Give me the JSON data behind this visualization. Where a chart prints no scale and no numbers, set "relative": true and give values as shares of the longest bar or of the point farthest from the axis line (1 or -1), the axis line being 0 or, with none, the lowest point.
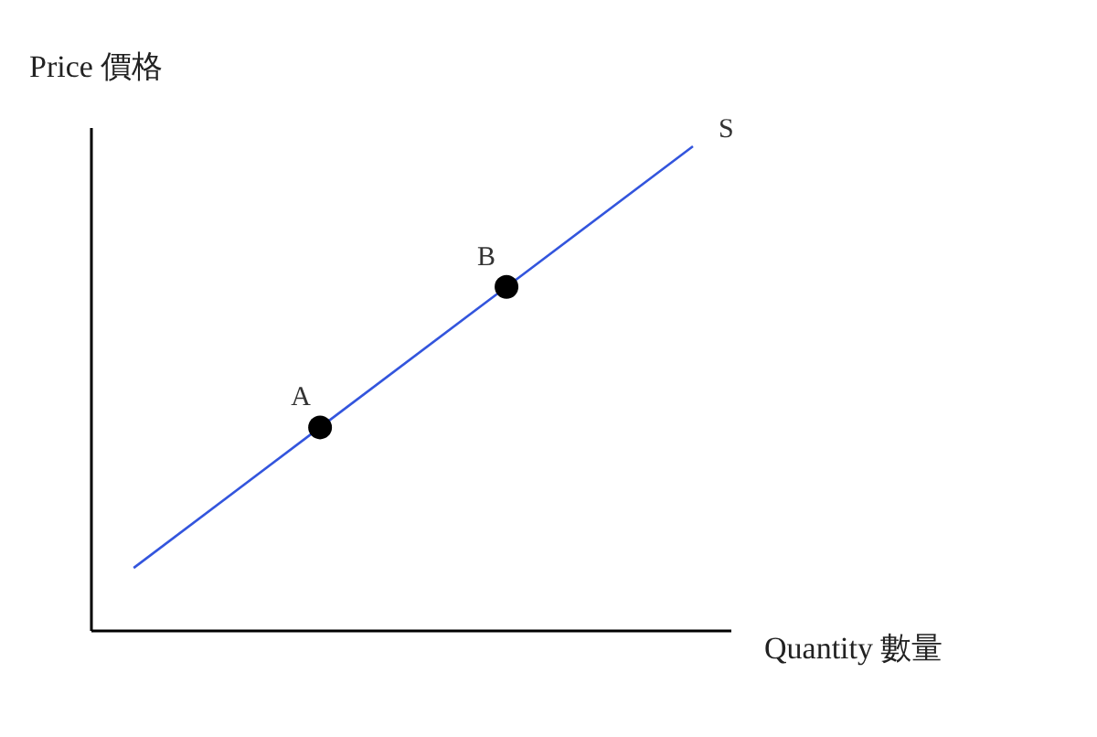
{
  "chart_data": {
    "type": "line",
    "relative": true,
    "xlabel": "Quantity 數量",
    "ylabel": "Price 價格",
    "grid": false,
    "legend": false,
    "marker": "circle",
    "line_style": "solid",
    "categories": [
      null,
      null,
      null,
      null
    ],
    "series": [
      {
        "name": "S",
        "color": "#3355dd",
        "values": [
          0.13,
          0.42,
          0.71,
          1
        ]
      }
    ],
    "annotations": [
      {
        "text": "A",
        "y": 0.42
      },
      {
        "text": "B",
        "y": 0.71
      }
    ]
  }
}
